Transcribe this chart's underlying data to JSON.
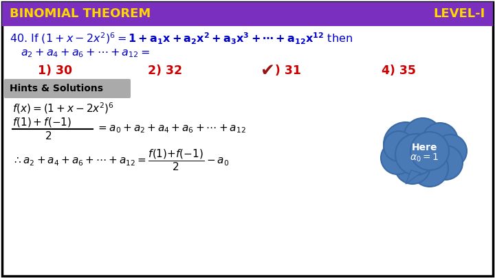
{
  "bg_color": "#ffffff",
  "border_color": "#000000",
  "header_bg": "#7B2FBE",
  "header_text_left": "BINOMIAL THEOREM",
  "header_text_right": "LEVEL-I",
  "header_font_color": "#FFD700",
  "question_color": "#0000cc",
  "options_color": "#cc0000",
  "correct_check_color": "#991111",
  "hints_bg": "#aaaaaa",
  "hints_text": "Hints & Solutions",
  "hints_text_color": "#000000",
  "solution_color": "#000000",
  "cloud_color": "#4a7ab5",
  "cloud_edge_color": "#3a6aa5",
  "cloud_text_color": "#ffffff"
}
